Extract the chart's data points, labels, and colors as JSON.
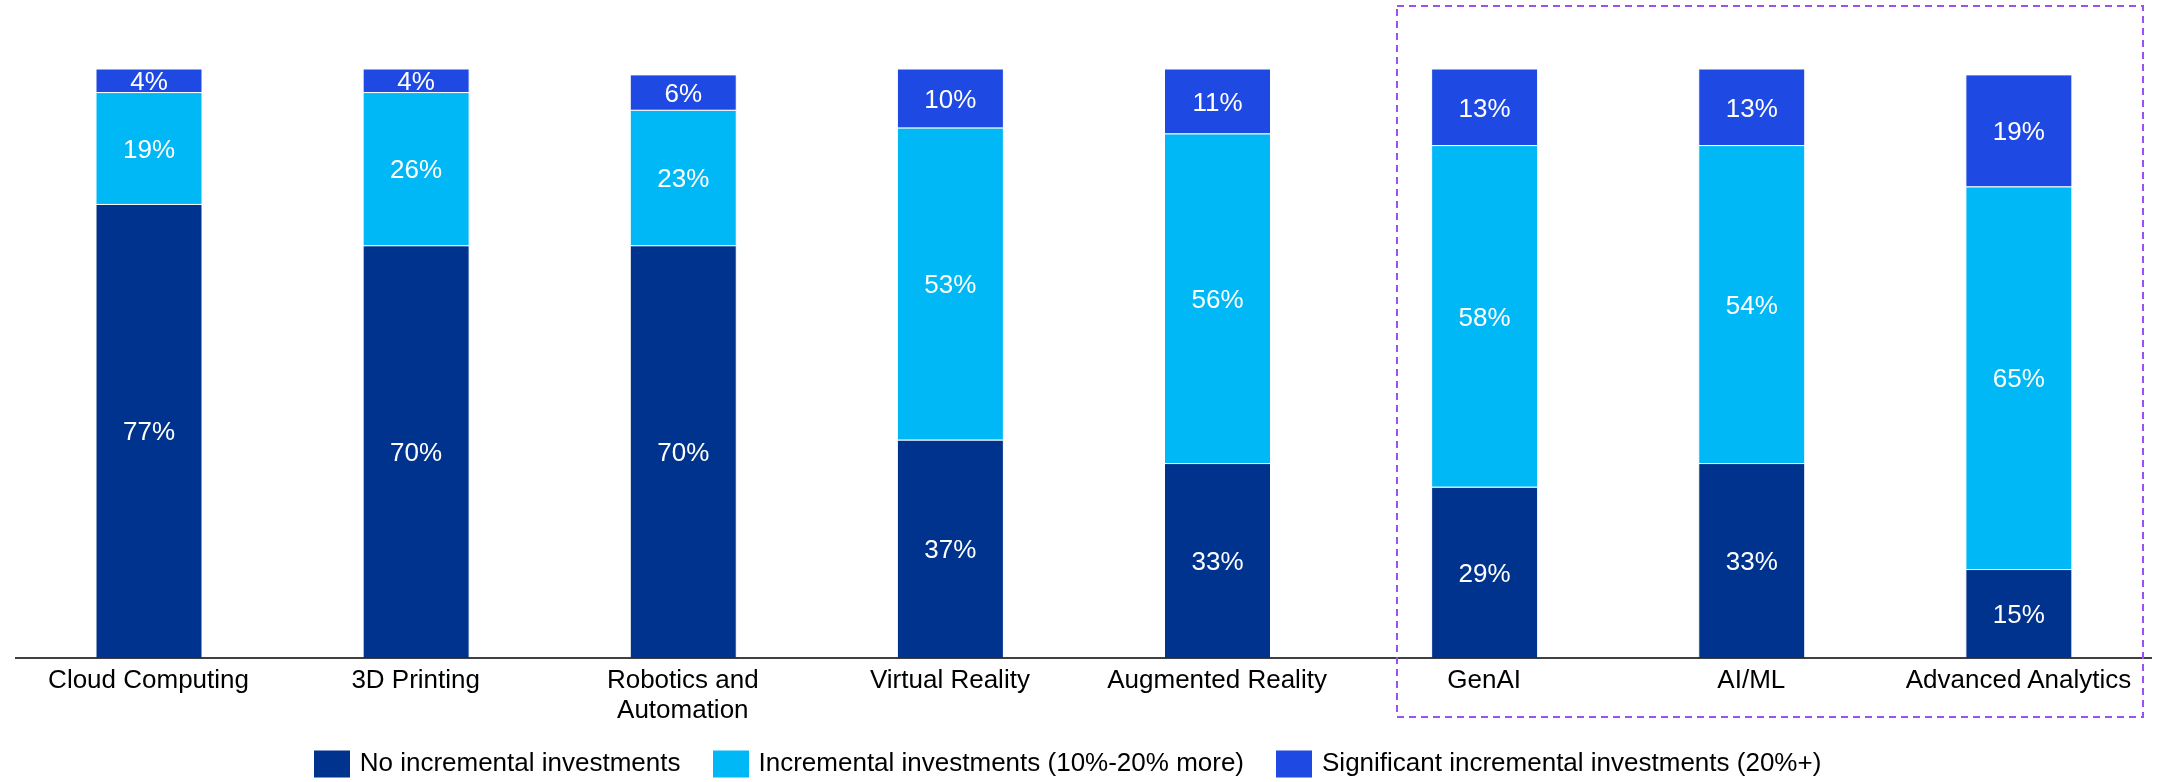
{
  "chart_data": {
    "type": "bar",
    "stacked": true,
    "categories": [
      "Cloud Computing",
      "3D Printing",
      "Robotics and Automation",
      "Virtual Reality",
      "Augmented Reality",
      "GenAI",
      "AI/ML",
      "Advanced Analytics"
    ],
    "series": [
      {
        "name": "No incremental investments",
        "color": "#00338d",
        "values": [
          77,
          70,
          70,
          37,
          33,
          29,
          33,
          15
        ],
        "value_labels": [
          "77%",
          "70%",
          "70%",
          "37%",
          "33%",
          "29%",
          "33%",
          "15%"
        ]
      },
      {
        "name": "Incremental investments (10%-20% more)",
        "color": "#00b8f5",
        "values": [
          19,
          26,
          23,
          53,
          56,
          58,
          54,
          65
        ],
        "value_labels": [
          "19%",
          "26%",
          "23%",
          "53%",
          "56%",
          "58%",
          "54%",
          "65%"
        ]
      },
      {
        "name": "Significant incremental investments (20%+)",
        "color": "#1e49e2",
        "values": [
          4,
          4,
          6,
          10,
          11,
          13,
          13,
          19
        ],
        "value_labels": [
          "4%",
          "4%",
          "6%",
          "10%",
          "11%",
          "13%",
          "13%",
          "19%"
        ]
      }
    ],
    "ylim": [
      0,
      100
    ],
    "tick_labels": "x",
    "legend": "bottom"
  }
}
